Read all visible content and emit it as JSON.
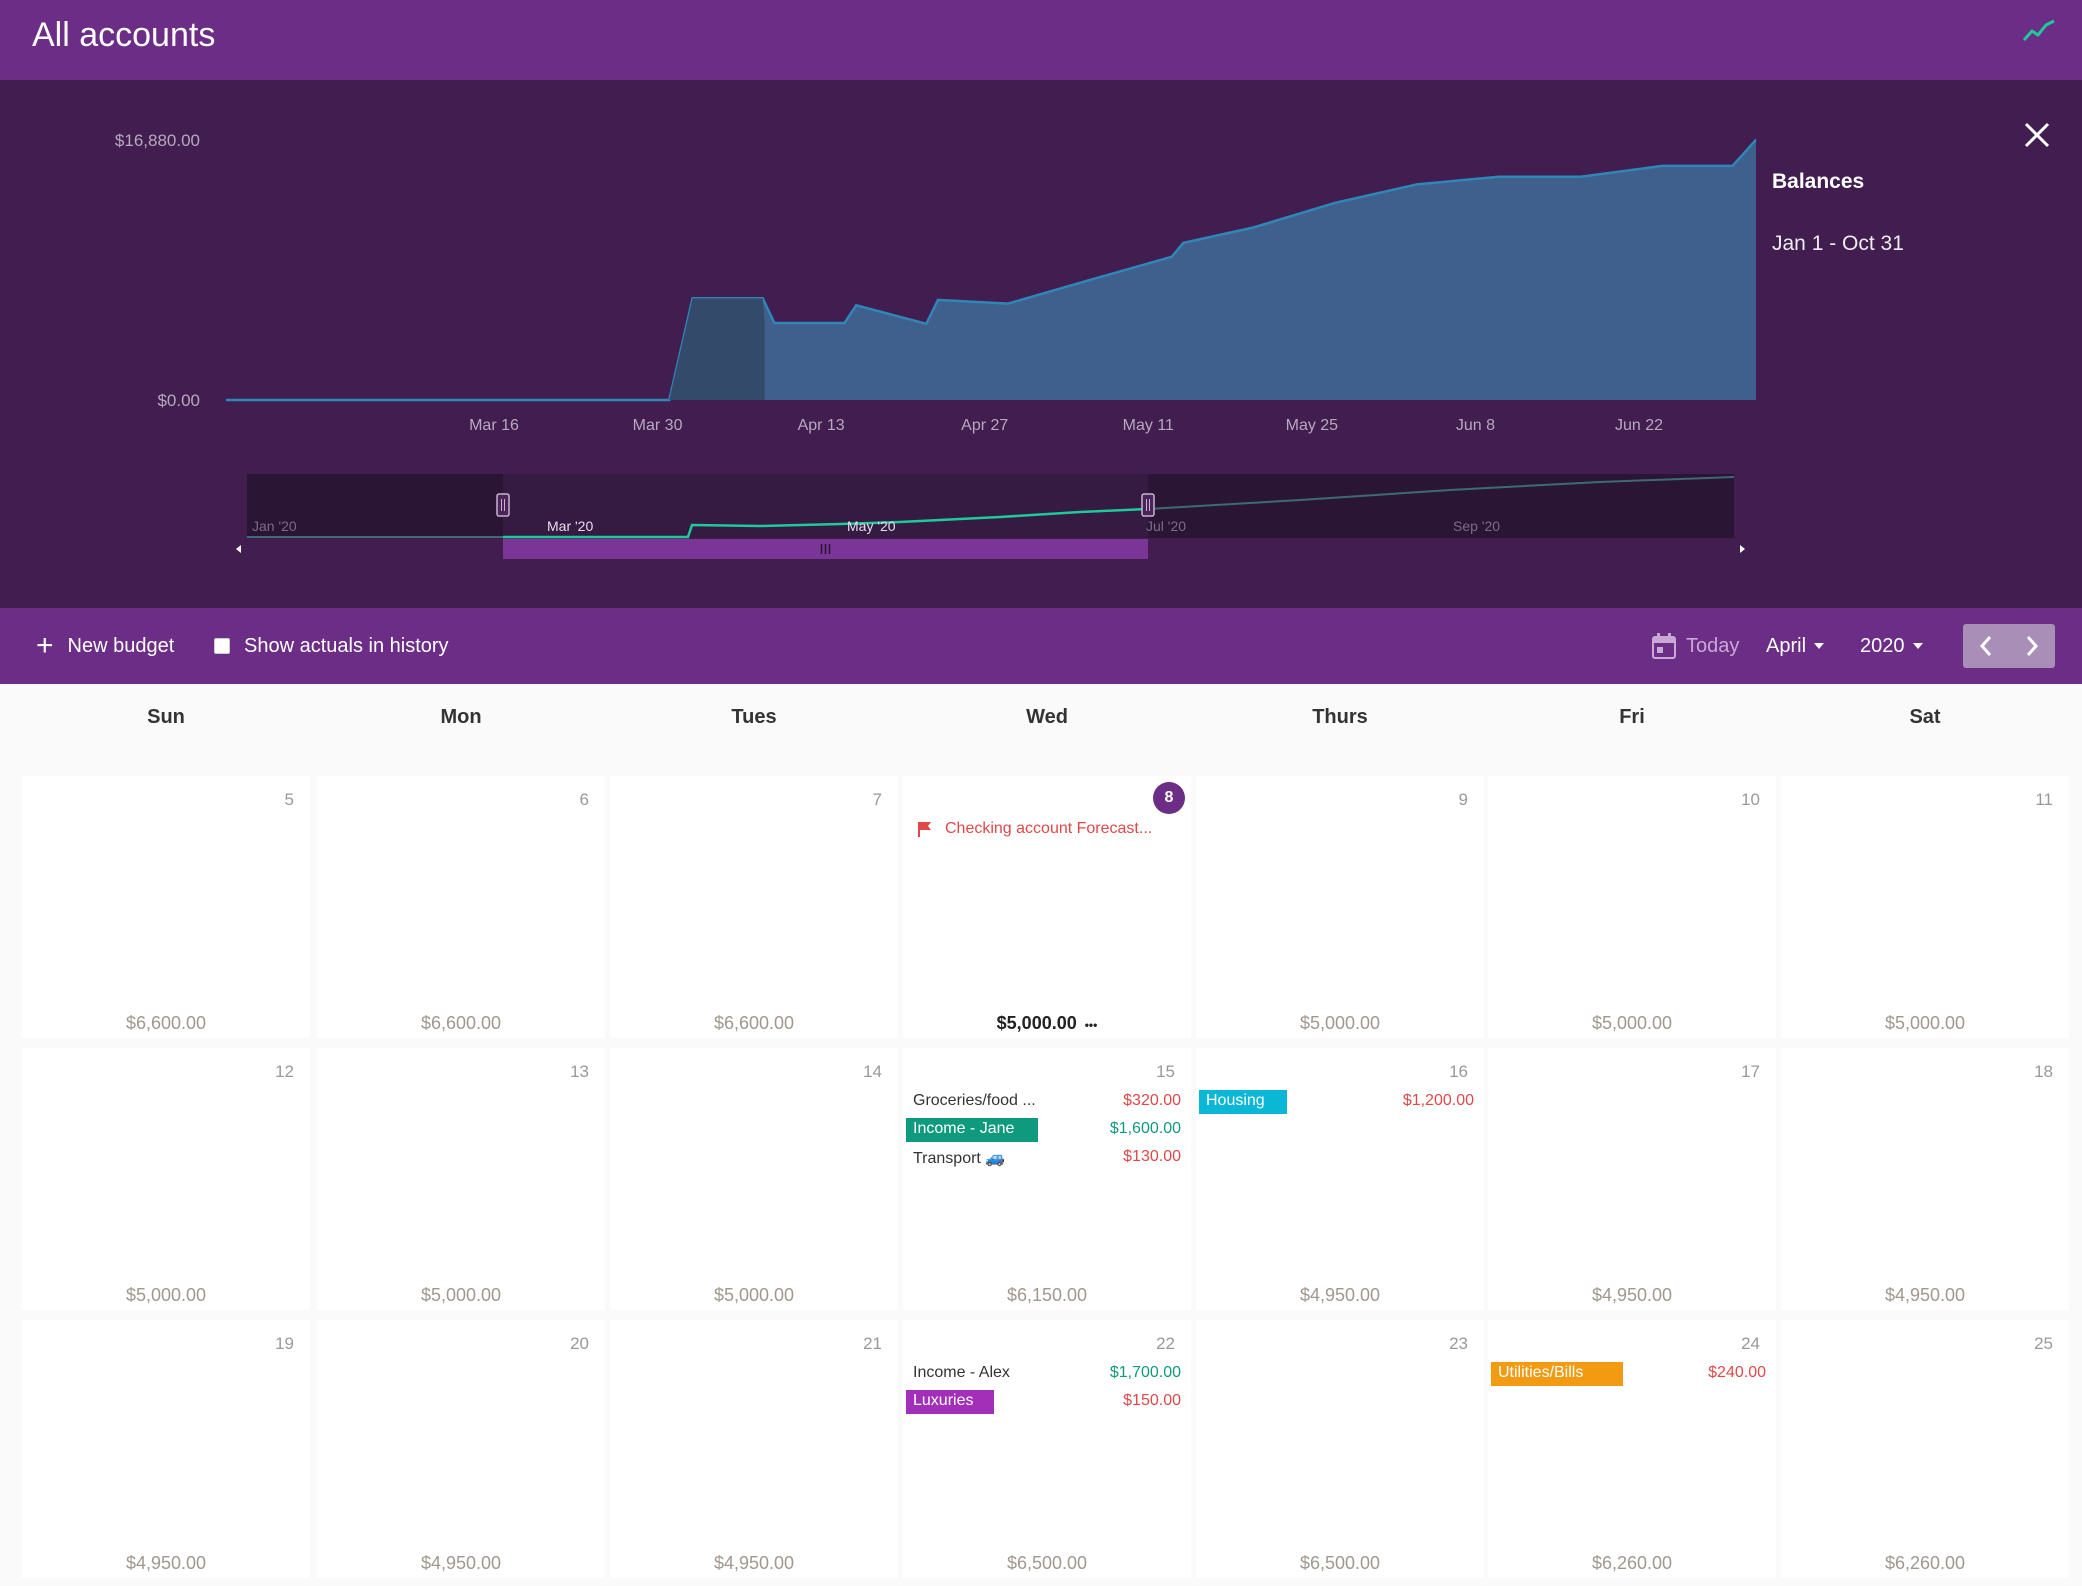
{
  "header": {
    "title": "All accounts",
    "trend_icon": "trend-line-icon"
  },
  "chart": {
    "title": "Balances",
    "subtitle": "Jan 1 - Oct 31"
  },
  "chart_data": {
    "type": "area",
    "y_ticks": [
      "$16,880.00",
      "$0.00"
    ],
    "ylim": [
      0,
      16880
    ],
    "x_ticks": [
      "Mar 16",
      "Mar 30",
      "Apr 13",
      "Apr 27",
      "May 11",
      "May 25",
      "Jun 8",
      "Jun 22"
    ],
    "x": [
      "Mar 2",
      "Mar 31",
      "Apr 2",
      "Apr 8",
      "Apr 9",
      "Apr 15",
      "Apr 16",
      "Apr 22",
      "Apr 23",
      "Apr 29",
      "May 6",
      "May 13",
      "May 14",
      "May 20",
      "May 27",
      "Jun 3",
      "Jun 10",
      "Jun 17",
      "Jun 24",
      "Jun 30",
      "Jul 2"
    ],
    "values": [
      0,
      0,
      6600,
      6600,
      5000,
      5000,
      6150,
      4950,
      6500,
      6260,
      7800,
      9300,
      10200,
      11200,
      12800,
      14000,
      14500,
      14500,
      15200,
      15200,
      16880
    ],
    "navigator_labels": [
      "Jan '20",
      "Mar '20",
      "May '20",
      "Jul '20",
      "Sep '20"
    ]
  },
  "toolbar": {
    "new_budget": "New budget",
    "show_actuals": "Show actuals in history",
    "today": "Today",
    "month": "April",
    "year": "2020"
  },
  "weekdays": [
    "Sun",
    "Mon",
    "Tues",
    "Wed",
    "Thurs",
    "Fri",
    "Sat"
  ],
  "weeks": [
    {
      "days": [
        {
          "num": "5",
          "balance": "$6,600.00"
        },
        {
          "num": "6",
          "balance": "$6,600.00"
        },
        {
          "num": "7",
          "balance": "$6,600.00"
        },
        {
          "num": "8",
          "balance": "$5,000.00",
          "forecast": "Checking account Forecast..."
        },
        {
          "num": "9",
          "balance": "$5,000.00"
        },
        {
          "num": "10",
          "balance": "$5,000.00"
        },
        {
          "num": "11",
          "balance": "$5,000.00"
        }
      ]
    },
    {
      "days": [
        {
          "num": "12",
          "balance": "$5,000.00"
        },
        {
          "num": "13",
          "balance": "$5,000.00"
        },
        {
          "num": "14",
          "balance": "$5,000.00"
        },
        {
          "num": "15",
          "balance": "$6,150.00",
          "entries": [
            {
              "label": "Groceries/food ...",
              "amount": "$320.00",
              "type": "neg"
            },
            {
              "label": "Income - Jane",
              "amount": "$1,600.00",
              "type": "pos",
              "tag": "#0f9a7e"
            },
            {
              "label": "Transport 🚙",
              "amount": "$130.00",
              "type": "neg"
            }
          ]
        },
        {
          "num": "16",
          "balance": "$4,950.00",
          "entries": [
            {
              "label": "Housing",
              "amount": "$1,200.00",
              "type": "neg",
              "tag": "#0ab8d6"
            }
          ]
        },
        {
          "num": "17",
          "balance": "$4,950.00"
        },
        {
          "num": "18",
          "balance": "$4,950.00"
        }
      ]
    },
    {
      "days": [
        {
          "num": "19",
          "balance": "$4,950.00"
        },
        {
          "num": "20",
          "balance": "$4,950.00"
        },
        {
          "num": "21",
          "balance": "$4,950.00"
        },
        {
          "num": "22",
          "balance": "$6,500.00",
          "entries": [
            {
              "label": "Income - Alex",
              "amount": "$1,700.00",
              "type": "pos"
            },
            {
              "label": "Luxuries",
              "amount": "$150.00",
              "type": "neg",
              "tag": "#a32eb8"
            }
          ]
        },
        {
          "num": "23",
          "balance": "$6,500.00"
        },
        {
          "num": "24",
          "balance": "$6,260.00",
          "entries": [
            {
              "label": "Utilities/Bills",
              "amount": "$240.00",
              "type": "neg",
              "tag": "#f39a13"
            }
          ]
        },
        {
          "num": "25",
          "balance": "$6,260.00"
        }
      ]
    }
  ]
}
